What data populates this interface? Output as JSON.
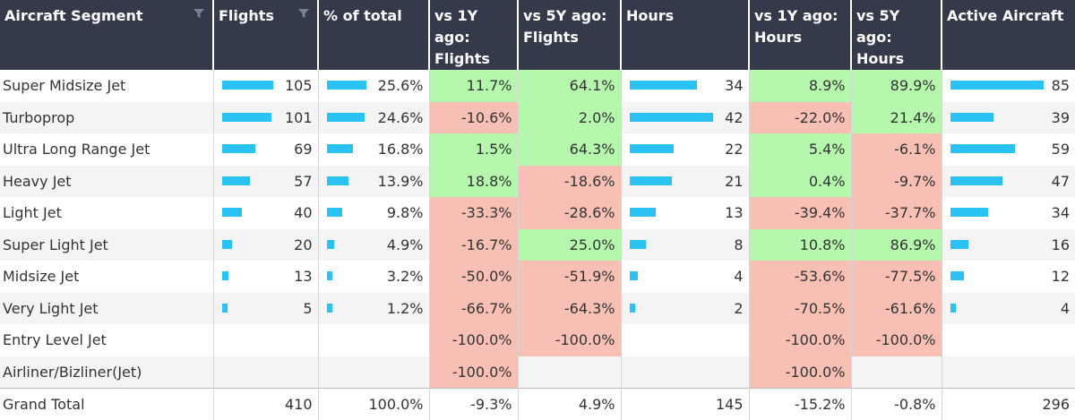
{
  "headers": [
    {
      "line1": "Aircraft Segment",
      "line2": "",
      "sortable": true
    },
    {
      "line1": "Flights",
      "line2": "",
      "sortable": true
    },
    {
      "line1": "% of total",
      "line2": "",
      "sortable": false
    },
    {
      "line1": "vs 1Y ago:",
      "line2": "Flights",
      "sortable": false
    },
    {
      "line1": "vs 5Y ago:",
      "line2": "Flights",
      "sortable": false
    },
    {
      "line1": "Hours",
      "line2": "",
      "sortable": false
    },
    {
      "line1": "vs 1Y ago:",
      "line2": "Hours",
      "sortable": false
    },
    {
      "line1": "vs 5Y ago:",
      "line2": "Hours",
      "sortable": false
    },
    {
      "line1": "Active Aircraft",
      "line2": "",
      "sortable": false
    }
  ],
  "colors": {
    "header_bg": "#353a4b",
    "bar": "#29c2f2",
    "positive": "#b6f7ae",
    "negative": "#f8c0b5"
  },
  "icons": {
    "sort": "sort-filter-icon"
  },
  "rows": [
    {
      "segment": "Super Midsize Jet",
      "flights": "105",
      "pct_total": "25.6%",
      "flights_1y": "11.7%",
      "flights_5y": "64.1%",
      "hours": "34",
      "hours_1y": "8.9%",
      "hours_5y": "89.9%",
      "active": "85",
      "flights_value": 105,
      "pct_value": 25.6,
      "hours_value": 34,
      "active_value": 85,
      "flights_1y_status": "positive",
      "flights_5y_status": "positive",
      "hours_1y_status": "positive",
      "hours_5y_status": "positive"
    },
    {
      "segment": "Turboprop",
      "flights": "101",
      "pct_total": "24.6%",
      "flights_1y": "-10.6%",
      "flights_5y": "2.0%",
      "hours": "42",
      "hours_1y": "-22.0%",
      "hours_5y": "21.4%",
      "active": "39",
      "flights_value": 101,
      "pct_value": 24.6,
      "hours_value": 42,
      "active_value": 39,
      "flights_1y_status": "negative",
      "flights_5y_status": "positive",
      "hours_1y_status": "negative",
      "hours_5y_status": "positive"
    },
    {
      "segment": "Ultra Long Range Jet",
      "flights": "69",
      "pct_total": "16.8%",
      "flights_1y": "1.5%",
      "flights_5y": "64.3%",
      "hours": "22",
      "hours_1y": "5.4%",
      "hours_5y": "-6.1%",
      "active": "59",
      "flights_value": 69,
      "pct_value": 16.8,
      "hours_value": 22,
      "active_value": 59,
      "flights_1y_status": "positive",
      "flights_5y_status": "positive",
      "hours_1y_status": "positive",
      "hours_5y_status": "negative"
    },
    {
      "segment": "Heavy Jet",
      "flights": "57",
      "pct_total": "13.9%",
      "flights_1y": "18.8%",
      "flights_5y": "-18.6%",
      "hours": "21",
      "hours_1y": "0.4%",
      "hours_5y": "-9.7%",
      "active": "47",
      "flights_value": 57,
      "pct_value": 13.9,
      "hours_value": 21,
      "active_value": 47,
      "flights_1y_status": "positive",
      "flights_5y_status": "negative",
      "hours_1y_status": "positive",
      "hours_5y_status": "negative"
    },
    {
      "segment": "Light Jet",
      "flights": "40",
      "pct_total": "9.8%",
      "flights_1y": "-33.3%",
      "flights_5y": "-28.6%",
      "hours": "13",
      "hours_1y": "-39.4%",
      "hours_5y": "-37.7%",
      "active": "34",
      "flights_value": 40,
      "pct_value": 9.8,
      "hours_value": 13,
      "active_value": 34,
      "flights_1y_status": "negative",
      "flights_5y_status": "negative",
      "hours_1y_status": "negative",
      "hours_5y_status": "negative"
    },
    {
      "segment": "Super Light Jet",
      "flights": "20",
      "pct_total": "4.9%",
      "flights_1y": "-16.7%",
      "flights_5y": "25.0%",
      "hours": "8",
      "hours_1y": "10.8%",
      "hours_5y": "86.9%",
      "active": "16",
      "flights_value": 20,
      "pct_value": 4.9,
      "hours_value": 8,
      "active_value": 16,
      "flights_1y_status": "negative",
      "flights_5y_status": "positive",
      "hours_1y_status": "positive",
      "hours_5y_status": "positive"
    },
    {
      "segment": "Midsize Jet",
      "flights": "13",
      "pct_total": "3.2%",
      "flights_1y": "-50.0%",
      "flights_5y": "-51.9%",
      "hours": "4",
      "hours_1y": "-53.6%",
      "hours_5y": "-77.5%",
      "active": "12",
      "flights_value": 13,
      "pct_value": 3.2,
      "hours_value": 4,
      "active_value": 12,
      "flights_1y_status": "negative",
      "flights_5y_status": "negative",
      "hours_1y_status": "negative",
      "hours_5y_status": "negative"
    },
    {
      "segment": "Very Light Jet",
      "flights": "5",
      "pct_total": "1.2%",
      "flights_1y": "-66.7%",
      "flights_5y": "-64.3%",
      "hours": "2",
      "hours_1y": "-70.5%",
      "hours_5y": "-61.6%",
      "active": "4",
      "flights_value": 5,
      "pct_value": 1.2,
      "hours_value": 2,
      "active_value": 4,
      "flights_1y_status": "negative",
      "flights_5y_status": "negative",
      "hours_1y_status": "negative",
      "hours_5y_status": "negative"
    },
    {
      "segment": "Entry Level Jet",
      "flights": "",
      "pct_total": "",
      "flights_1y": "-100.0%",
      "flights_5y": "-100.0%",
      "hours": "",
      "hours_1y": "-100.0%",
      "hours_5y": "-100.0%",
      "active": "",
      "flights_value": null,
      "pct_value": null,
      "hours_value": null,
      "active_value": null,
      "flights_1y_status": "negative",
      "flights_5y_status": "negative",
      "hours_1y_status": "negative",
      "hours_5y_status": "negative"
    },
    {
      "segment": "Airliner/Bizliner(Jet)",
      "flights": "",
      "pct_total": "",
      "flights_1y": "-100.0%",
      "flights_5y": "",
      "hours": "",
      "hours_1y": "-100.0%",
      "hours_5y": "",
      "active": "",
      "flights_value": null,
      "pct_value": null,
      "hours_value": null,
      "active_value": null,
      "flights_1y_status": "negative",
      "flights_5y_status": "none",
      "hours_1y_status": "negative",
      "hours_5y_status": "none"
    }
  ],
  "total": {
    "segment": "Grand Total",
    "flights": "410",
    "pct_total": "100.0%",
    "flights_1y": "-9.3%",
    "flights_5y": "4.9%",
    "hours": "145",
    "hours_1y": "-15.2%",
    "hours_5y": "-0.8%",
    "active": "296"
  }
}
